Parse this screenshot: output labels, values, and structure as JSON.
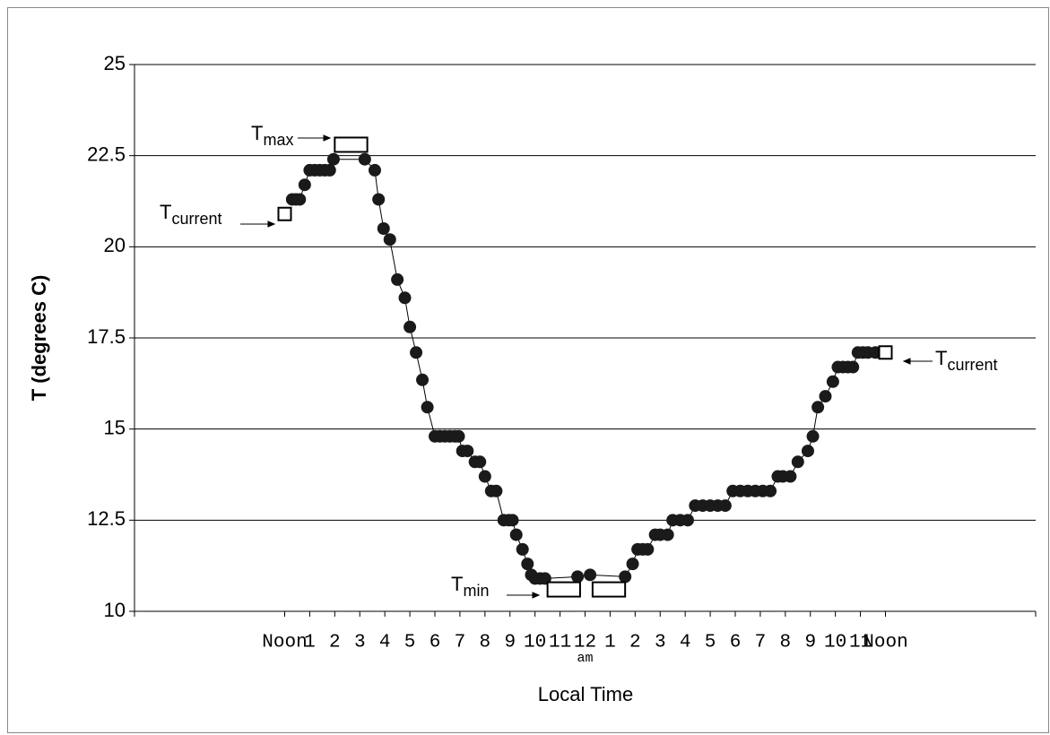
{
  "chart_data": {
    "type": "line",
    "xlabel": "Local Time",
    "ylabel": "T (degrees C)",
    "xlim": [
      -6,
      30
    ],
    "ylim": [
      10,
      25
    ],
    "yticks": [
      10,
      12.5,
      15,
      17.5,
      20,
      22.5,
      25
    ],
    "grid": true,
    "xticks": [
      {
        "value": 0,
        "label": "Noon"
      },
      {
        "value": 1,
        "label": "1"
      },
      {
        "value": 2,
        "label": "2"
      },
      {
        "value": 3,
        "label": "3"
      },
      {
        "value": 4,
        "label": "4"
      },
      {
        "value": 5,
        "label": "5"
      },
      {
        "value": 6,
        "label": "6"
      },
      {
        "value": 7,
        "label": "7"
      },
      {
        "value": 8,
        "label": "8"
      },
      {
        "value": 9,
        "label": "9"
      },
      {
        "value": 10,
        "label": "10"
      },
      {
        "value": 11,
        "label": "11"
      },
      {
        "value": 12,
        "label": "12"
      },
      {
        "value": 13,
        "label": "1"
      },
      {
        "value": 14,
        "label": "2"
      },
      {
        "value": 15,
        "label": "3"
      },
      {
        "value": 16,
        "label": "4"
      },
      {
        "value": 17,
        "label": "5"
      },
      {
        "value": 18,
        "label": "6"
      },
      {
        "value": 19,
        "label": "7"
      },
      {
        "value": 20,
        "label": "8"
      },
      {
        "value": 21,
        "label": "9"
      },
      {
        "value": 22,
        "label": "10"
      },
      {
        "value": 23,
        "label": "11"
      },
      {
        "value": 24,
        "label": "Noon"
      }
    ],
    "xtick_note": "am",
    "color": "#1a1a1a",
    "x": [
      0.3,
      0.45,
      0.6,
      0.8,
      1.0,
      1.2,
      1.4,
      1.6,
      1.8,
      1.95,
      3.2,
      3.6,
      3.75,
      3.95,
      4.2,
      4.5,
      4.8,
      5.0,
      5.25,
      5.5,
      5.7,
      6.0,
      6.2,
      6.4,
      6.6,
      6.8,
      6.95,
      7.1,
      7.3,
      7.6,
      7.8,
      8.0,
      8.25,
      8.45,
      8.75,
      8.95,
      9.1,
      9.25,
      9.5,
      9.7,
      9.85,
      10.0,
      10.2,
      10.4,
      11.7,
      12.2,
      13.6,
      13.9,
      14.1,
      14.3,
      14.5,
      14.8,
      15.0,
      15.3,
      15.5,
      15.8,
      16.1,
      16.4,
      16.7,
      17.0,
      17.3,
      17.6,
      17.9,
      18.2,
      18.5,
      18.8,
      19.1,
      19.4,
      19.7,
      19.9,
      20.2,
      20.5,
      20.9,
      21.1,
      21.3,
      21.6,
      21.9,
      22.1,
      22.3,
      22.5,
      22.7,
      22.9,
      23.1,
      23.3,
      23.6
    ],
    "values": [
      21.3,
      21.3,
      21.3,
      21.7,
      22.1,
      22.1,
      22.1,
      22.1,
      22.1,
      22.4,
      22.4,
      22.1,
      21.3,
      20.5,
      20.2,
      19.1,
      18.6,
      17.8,
      17.1,
      16.35,
      15.6,
      14.8,
      14.8,
      14.8,
      14.8,
      14.8,
      14.8,
      14.4,
      14.4,
      14.1,
      14.1,
      13.7,
      13.3,
      13.3,
      12.5,
      12.5,
      12.5,
      12.1,
      11.7,
      11.3,
      11.0,
      10.9,
      10.9,
      10.9,
      10.95,
      11.0,
      10.95,
      11.3,
      11.7,
      11.7,
      11.7,
      12.1,
      12.1,
      12.1,
      12.5,
      12.5,
      12.5,
      12.9,
      12.9,
      12.9,
      12.9,
      12.9,
      13.3,
      13.3,
      13.3,
      13.3,
      13.3,
      13.3,
      13.7,
      13.7,
      13.7,
      14.1,
      14.4,
      14.8,
      15.6,
      15.9,
      16.3,
      16.7,
      16.7,
      16.7,
      16.7,
      17.1,
      17.1,
      17.1,
      17.1
    ],
    "current": {
      "x": [
        0,
        24
      ],
      "values": [
        20.9,
        17.1
      ]
    },
    "ranges": [
      {
        "x": [
          2.0,
          3.3
        ],
        "value": 22.8
      },
      {
        "x": [
          10.5,
          11.8
        ],
        "value": 10.6
      },
      {
        "x": [
          12.3,
          13.6
        ],
        "value": 10.6
      }
    ],
    "annotations": [
      {
        "text": "T",
        "sub": "max"
      },
      {
        "text": "T",
        "sub": "current"
      },
      {
        "text": "T",
        "sub": "min"
      },
      {
        "text": "T",
        "sub": "current"
      }
    ]
  }
}
